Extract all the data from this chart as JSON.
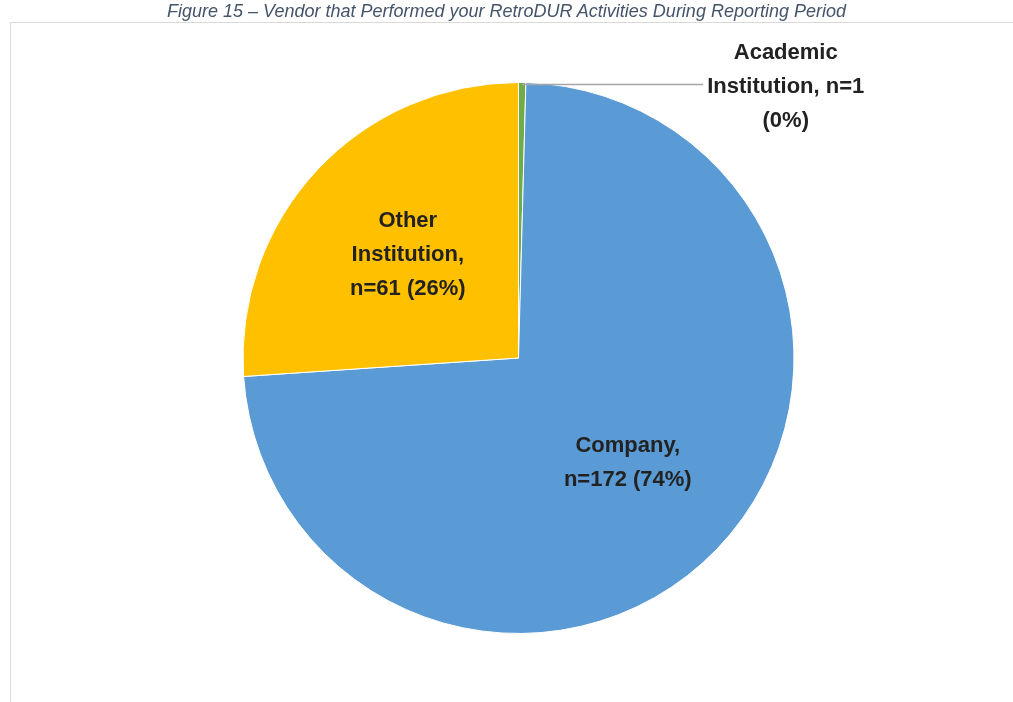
{
  "chart_data": {
    "type": "pie",
    "title": "Figure 15 – Vendor that Performed your RetroDUR Activities During Reporting Period",
    "categories": [
      "Academic Institution",
      "Company",
      "Other Institution"
    ],
    "values": [
      1,
      172,
      61
    ],
    "colors": [
      "#70ad47",
      "#5b9bd5",
      "#ffc000"
    ],
    "value_labels": [
      ", n=1 (0%)",
      ", n=172 (74%)",
      ", n=61 (26%)"
    ],
    "legend": false
  }
}
